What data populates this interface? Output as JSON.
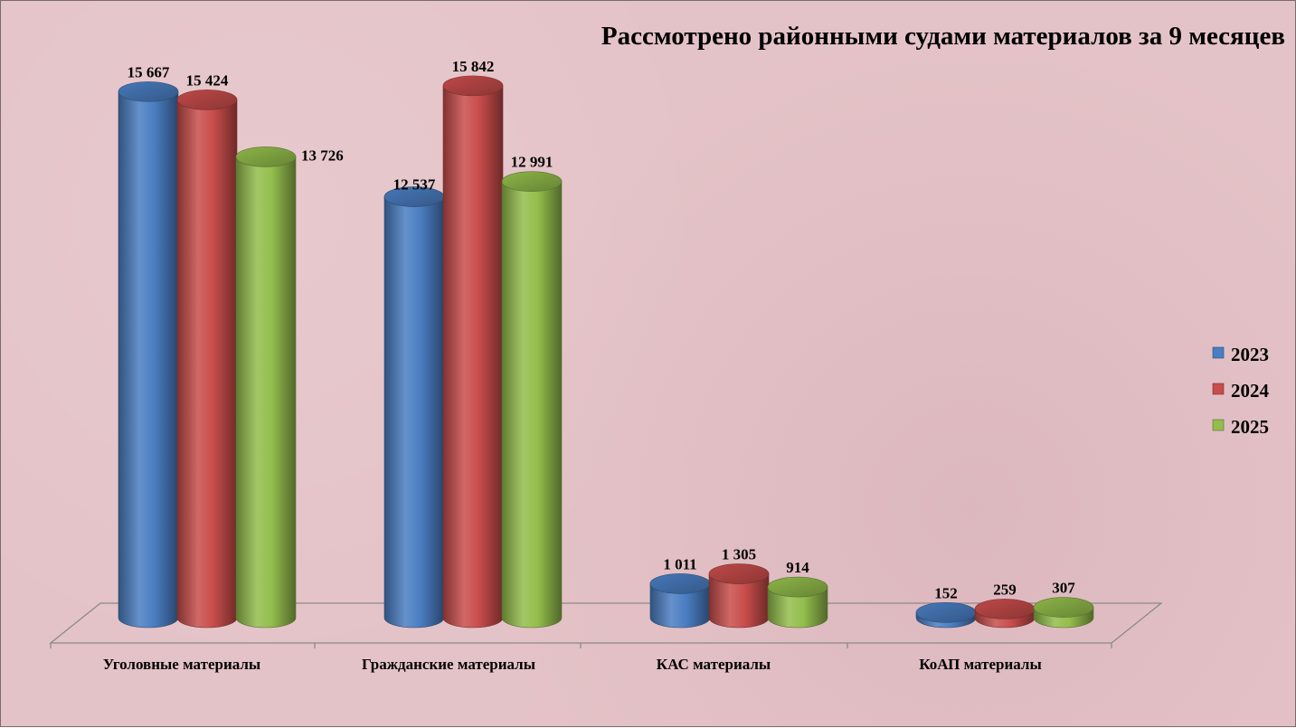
{
  "chart_data": {
    "type": "bar",
    "style": "3d-cylinder",
    "title": "Рассмотрено районными судами материалов  за 9 месяцев",
    "categories": [
      "Уголовные материалы",
      "Гражданские материалы",
      "КАС материалы",
      "КоАП материалы"
    ],
    "series": [
      {
        "name": "2023",
        "color": "#4a7ec2",
        "values": [
          15667,
          12537,
          1011,
          152
        ],
        "labels": [
          "15 667",
          "12 537",
          "1 011",
          "152"
        ]
      },
      {
        "name": "2024",
        "color": "#c84d4b",
        "values": [
          15424,
          15842,
          1305,
          259
        ],
        "labels": [
          "15 424",
          "15 842",
          "1 305",
          "259"
        ]
      },
      {
        "name": "2025",
        "color": "#93bd4c",
        "values": [
          13726,
          12991,
          914,
          307
        ],
        "labels": [
          "13 726",
          "12 991",
          "914",
          "307"
        ]
      }
    ],
    "ylim": [
      0,
      16000
    ],
    "grid": false,
    "legend_position": "right",
    "background_color": "#e4c3c8"
  }
}
